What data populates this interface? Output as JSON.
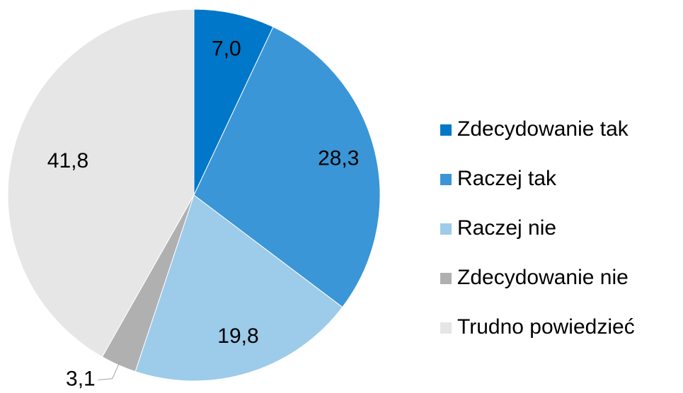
{
  "chart_data": {
    "type": "pie",
    "categories": [
      "Zdecydowanie tak",
      "Raczej tak",
      "Raczej nie",
      "Zdecydowanie nie",
      "Trudno powiedzieć"
    ],
    "values": [
      7.0,
      28.3,
      19.8,
      3.1,
      41.8
    ],
    "value_labels": [
      "7,0",
      "28,3",
      "19,8",
      "3,1",
      "41,8"
    ],
    "colors": [
      "#0077c8",
      "#3a96d6",
      "#9dcbea",
      "#b0b0b0",
      "#e6e6e6"
    ],
    "legend": "right"
  }
}
